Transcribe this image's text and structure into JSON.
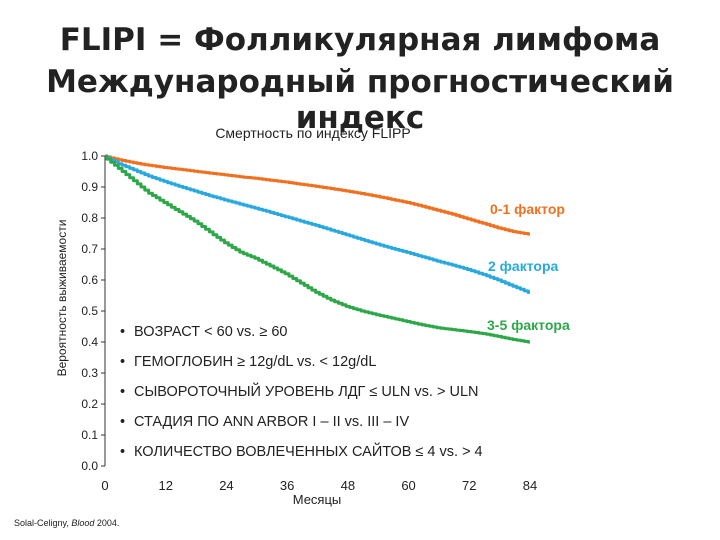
{
  "slide": {
    "title_line1": "FLIPI = Фолликулярная лимфома",
    "title_line2": "Международный прогностический индекс"
  },
  "chart_data": {
    "type": "line",
    "subtitle": "Смертность по индексу FLIPP",
    "xlabel": "Месяцы",
    "ylabel": "Вероятность выживаемости",
    "xlim": [
      0,
      84
    ],
    "ylim": [
      0,
      1
    ],
    "x_ticks": [
      "0",
      "12",
      "24",
      "36",
      "48",
      "60",
      "72",
      "84"
    ],
    "y_ticks": [
      "0.0",
      "0.1",
      "0.2",
      "0.3",
      "0.4",
      "0.5",
      "0.6",
      "0.7",
      "0.8",
      "0.9",
      "1.0"
    ],
    "grid": false,
    "series": [
      {
        "name": "0-1 фактор",
        "color": "#f07020",
        "x": [
          0,
          3,
          6,
          9,
          12,
          15,
          18,
          21,
          24,
          27,
          30,
          33,
          36,
          39,
          42,
          45,
          48,
          51,
          54,
          57,
          60,
          63,
          66,
          69,
          72,
          75,
          78,
          81,
          84
        ],
        "y": [
          1.0,
          0.988,
          0.978,
          0.97,
          0.963,
          0.957,
          0.951,
          0.945,
          0.939,
          0.933,
          0.928,
          0.922,
          0.916,
          0.909,
          0.902,
          0.895,
          0.887,
          0.879,
          0.87,
          0.86,
          0.85,
          0.838,
          0.825,
          0.812,
          0.797,
          0.783,
          0.768,
          0.756,
          0.748
        ]
      },
      {
        "name": "2 фактора",
        "color": "#27a9e0",
        "x": [
          0,
          3,
          6,
          9,
          12,
          15,
          18,
          21,
          24,
          27,
          30,
          33,
          36,
          39,
          42,
          45,
          48,
          51,
          54,
          57,
          60,
          63,
          66,
          69,
          72,
          75,
          78,
          81,
          84
        ],
        "y": [
          1.0,
          0.975,
          0.955,
          0.935,
          0.918,
          0.902,
          0.887,
          0.872,
          0.858,
          0.845,
          0.832,
          0.818,
          0.804,
          0.79,
          0.776,
          0.761,
          0.746,
          0.731,
          0.716,
          0.702,
          0.689,
          0.675,
          0.661,
          0.648,
          0.634,
          0.618,
          0.6,
          0.58,
          0.56
        ]
      },
      {
        "name": "3-5 фактора",
        "color": "#2ca849",
        "x": [
          0,
          3,
          6,
          9,
          12,
          15,
          18,
          21,
          24,
          27,
          30,
          33,
          36,
          39,
          42,
          45,
          48,
          51,
          54,
          57,
          60,
          63,
          66,
          69,
          72,
          75,
          78,
          81,
          84
        ],
        "y": [
          1.0,
          0.96,
          0.92,
          0.88,
          0.85,
          0.82,
          0.79,
          0.755,
          0.72,
          0.69,
          0.67,
          0.645,
          0.62,
          0.59,
          0.56,
          0.535,
          0.515,
          0.5,
          0.488,
          0.477,
          0.466,
          0.455,
          0.446,
          0.44,
          0.434,
          0.427,
          0.418,
          0.408,
          0.4
        ]
      }
    ]
  },
  "factors": [
    "ВОЗРАСТ < 60 vs. ≥ 60",
    "ГЕМОГЛОБИН ≥ 12g/dL vs. < 12g/dL",
    "СЫВОРОТОЧНЫЙ УРОВЕНЬ ЛДГ ≤ ULN vs. > ULN",
    "СТАДИЯ ПО ANN ARBOR I – II vs. III – IV",
    "КОЛИЧЕСТВО ВОВЛЕЧЕННЫХ САЙТОВ ≤ 4 vs. > 4"
  ],
  "bullet_glyph": "•",
  "citation": "Solal-Celigny, Blood 2004."
}
